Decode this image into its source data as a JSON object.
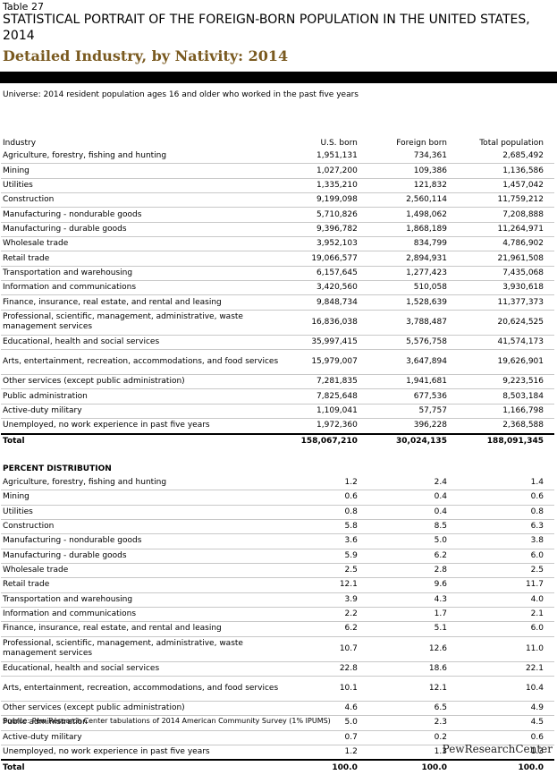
{
  "header": {
    "table_number": "Table 27",
    "title": "STATISTICAL PORTRAIT OF THE FOREIGN-BORN POPULATION IN THE UNITED STATES, 2014",
    "subtitle": "Detailed Industry, by Nativity: 2014",
    "universe": "Universe: 2014 resident population ages 16 and older who worked in the past five years"
  },
  "columns": [
    "Industry",
    "U.S. born",
    "Foreign born",
    "Total population"
  ],
  "counts": [
    [
      "Agriculture, forestry, fishing and hunting",
      "1,951,131",
      "734,361",
      "2,685,492"
    ],
    [
      "Mining",
      "1,027,200",
      "109,386",
      "1,136,586"
    ],
    [
      "Utilities",
      "1,335,210",
      "121,832",
      "1,457,042"
    ],
    [
      "Construction",
      "9,199,098",
      "2,560,114",
      "11,759,212"
    ],
    [
      "Manufacturing - nondurable goods",
      "5,710,826",
      "1,498,062",
      "7,208,888"
    ],
    [
      "Manufacturing - durable goods",
      "9,396,782",
      "1,868,189",
      "11,264,971"
    ],
    [
      "Wholesale trade",
      "3,952,103",
      "834,799",
      "4,786,902"
    ],
    [
      "Retail trade",
      "19,066,577",
      "2,894,931",
      "21,961,508"
    ],
    [
      "Transportation and warehousing",
      "6,157,645",
      "1,277,423",
      "7,435,068"
    ],
    [
      "Information and communications",
      "3,420,560",
      "510,058",
      "3,930,618"
    ],
    [
      "Finance, insurance, real estate, and rental and leasing",
      "9,848,734",
      "1,528,639",
      "11,377,373"
    ],
    [
      "Professional, scientific, management, administrative, waste management services",
      "16,836,038",
      "3,788,487",
      "20,624,525"
    ],
    [
      "Educational, health and social services",
      "35,997,415",
      "5,576,758",
      "41,574,173"
    ],
    [
      "Arts, entertainment, recreation, accommodations, and food services",
      "15,979,007",
      "3,647,894",
      "19,626,901"
    ],
    [
      "Other services (except public administration)",
      "7,281,835",
      "1,941,681",
      "9,223,516"
    ],
    [
      "Public administration",
      "7,825,648",
      "677,536",
      "8,503,184"
    ],
    [
      "Active-duty military",
      "1,109,041",
      "57,757",
      "1,166,798"
    ],
    [
      "Unemployed, no work experience in past five years",
      "1,972,360",
      "396,228",
      "2,368,588"
    ]
  ],
  "counts_total": [
    "Total",
    "158,067,210",
    "30,024,135",
    "188,091,345"
  ],
  "percent_heading": "PERCENT DISTRIBUTION",
  "percents": [
    [
      "Agriculture, forestry, fishing and hunting",
      "1.2",
      "2.4",
      "1.4"
    ],
    [
      "Mining",
      "0.6",
      "0.4",
      "0.6"
    ],
    [
      "Utilities",
      "0.8",
      "0.4",
      "0.8"
    ],
    [
      "Construction",
      "5.8",
      "8.5",
      "6.3"
    ],
    [
      "Manufacturing - nondurable goods",
      "3.6",
      "5.0",
      "3.8"
    ],
    [
      "Manufacturing - durable goods",
      "5.9",
      "6.2",
      "6.0"
    ],
    [
      "Wholesale trade",
      "2.5",
      "2.8",
      "2.5"
    ],
    [
      "Retail trade",
      "12.1",
      "9.6",
      "11.7"
    ],
    [
      "Transportation and warehousing",
      "3.9",
      "4.3",
      "4.0"
    ],
    [
      "Information and communications",
      "2.2",
      "1.7",
      "2.1"
    ],
    [
      "Finance, insurance, real estate, and rental and leasing",
      "6.2",
      "5.1",
      "6.0"
    ],
    [
      "Professional, scientific, management, administrative, waste management services",
      "10.7",
      "12.6",
      "11.0"
    ],
    [
      "Educational, health and social services",
      "22.8",
      "18.6",
      "22.1"
    ],
    [
      "Arts, entertainment, recreation, accommodations, and food services",
      "10.1",
      "12.1",
      "10.4"
    ],
    [
      "Other services (except public administration)",
      "4.6",
      "6.5",
      "4.9"
    ],
    [
      "Public administration",
      "5.0",
      "2.3",
      "4.5"
    ],
    [
      "Active-duty military",
      "0.7",
      "0.2",
      "0.6"
    ],
    [
      "Unemployed, no work experience in past five years",
      "1.2",
      "1.3",
      "1.3"
    ]
  ],
  "percents_total": [
    "Total",
    "100.0",
    "100.0",
    "100.0"
  ],
  "source": "Source: Pew Research Center tabulations of 2014 American Community Survey (1% IPUMS)",
  "logo": "PewResearchCenter"
}
